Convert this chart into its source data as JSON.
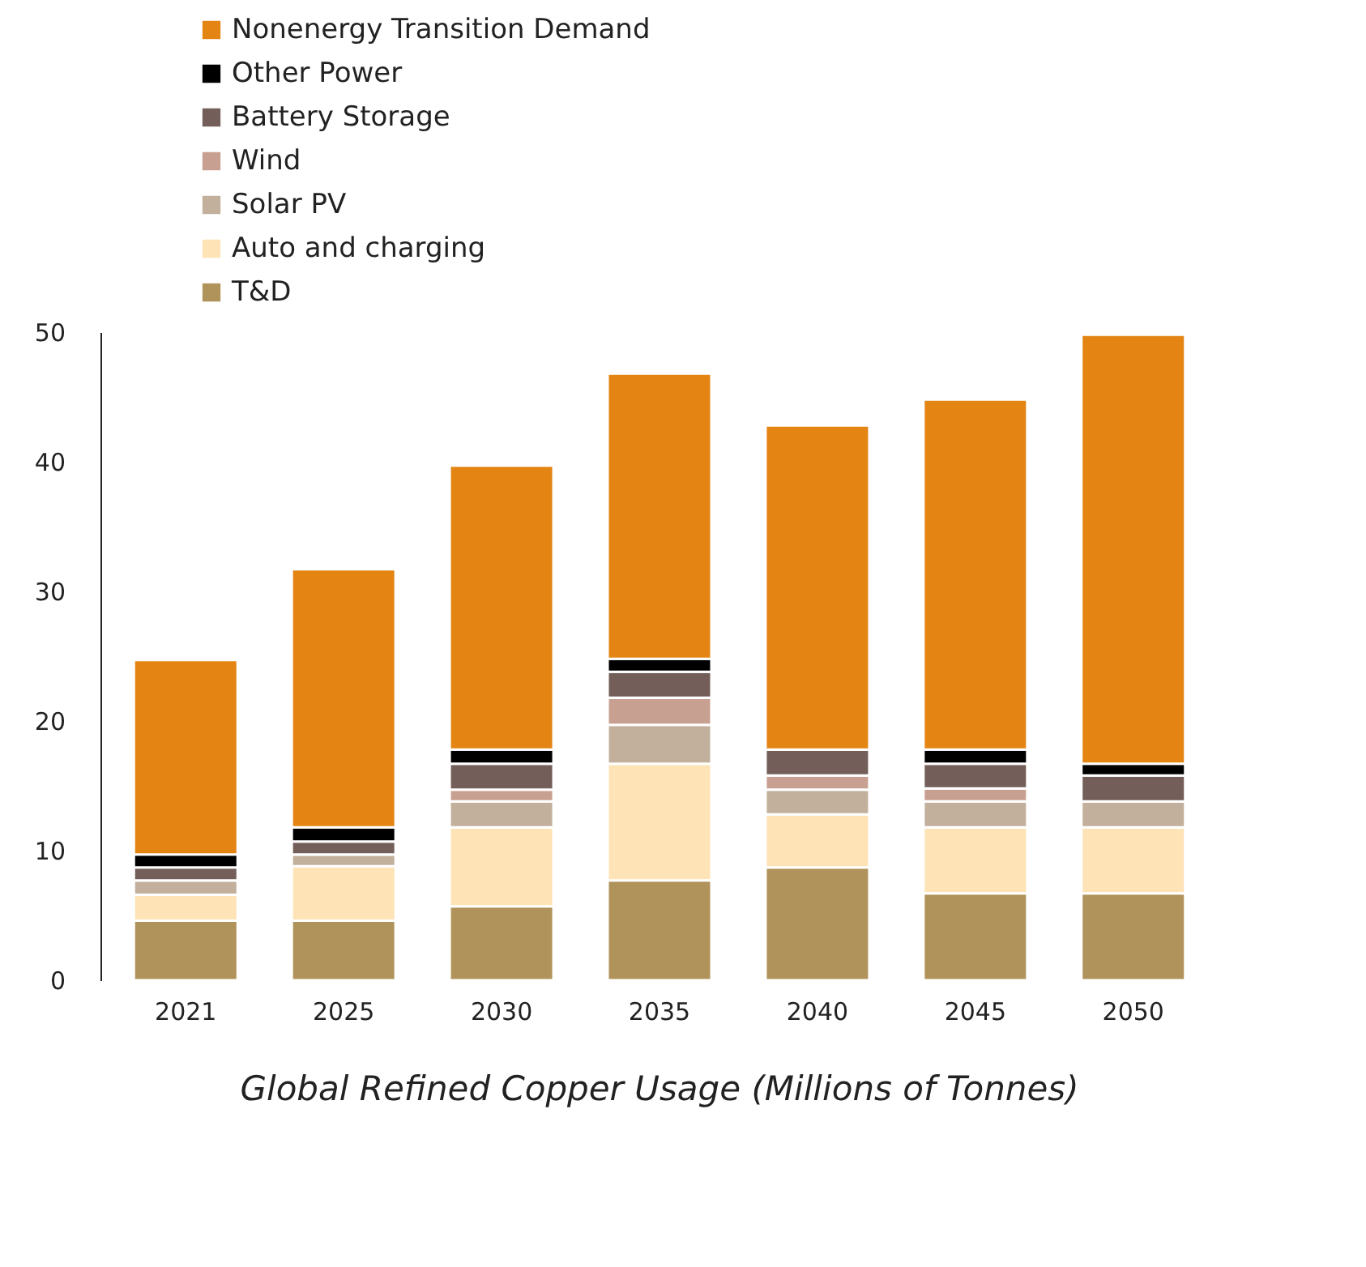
{
  "chart_data": {
    "type": "bar",
    "stacked": true,
    "title": "Global Refined Copper Usage (Millions of Tonnes)",
    "categories": [
      "2021",
      "2025",
      "2030",
      "2035",
      "2040",
      "2045",
      "2050"
    ],
    "series": [
      {
        "name": "T&D",
        "color": "#b0935a",
        "values": [
          4.6,
          4.6,
          5.7,
          7.7,
          8.7,
          6.7,
          6.7
        ]
      },
      {
        "name": "Auto and charging",
        "color": "#fde3b5",
        "values": [
          2.0,
          4.2,
          6.1,
          9.0,
          4.1,
          5.1,
          5.1
        ]
      },
      {
        "name": "Solar PV",
        "color": "#c2b09c",
        "values": [
          1.1,
          0.9,
          2.0,
          3.0,
          1.9,
          2.0,
          2.0
        ]
      },
      {
        "name": "Wind",
        "color": "#c8a091",
        "values": [
          0,
          0,
          0.9,
          2.1,
          1.1,
          1.0,
          0
        ]
      },
      {
        "name": "Battery Storage",
        "color": "#735e59",
        "values": [
          1.0,
          1.0,
          2.0,
          2.0,
          2.0,
          1.9,
          2.0
        ]
      },
      {
        "name": "Other Power",
        "color": "#000000",
        "values": [
          1.0,
          1.1,
          1.1,
          1.0,
          0,
          1.1,
          0.9
        ]
      },
      {
        "name": "Nonenergy Transition Demand",
        "color": "#e38413",
        "values": [
          15.0,
          19.9,
          21.9,
          22.0,
          25.0,
          27.0,
          33.1
        ]
      }
    ],
    "ylim": [
      0,
      50
    ],
    "yticks": [
      0,
      10,
      20,
      30,
      40,
      50
    ],
    "grid": false,
    "legend": "top left"
  }
}
